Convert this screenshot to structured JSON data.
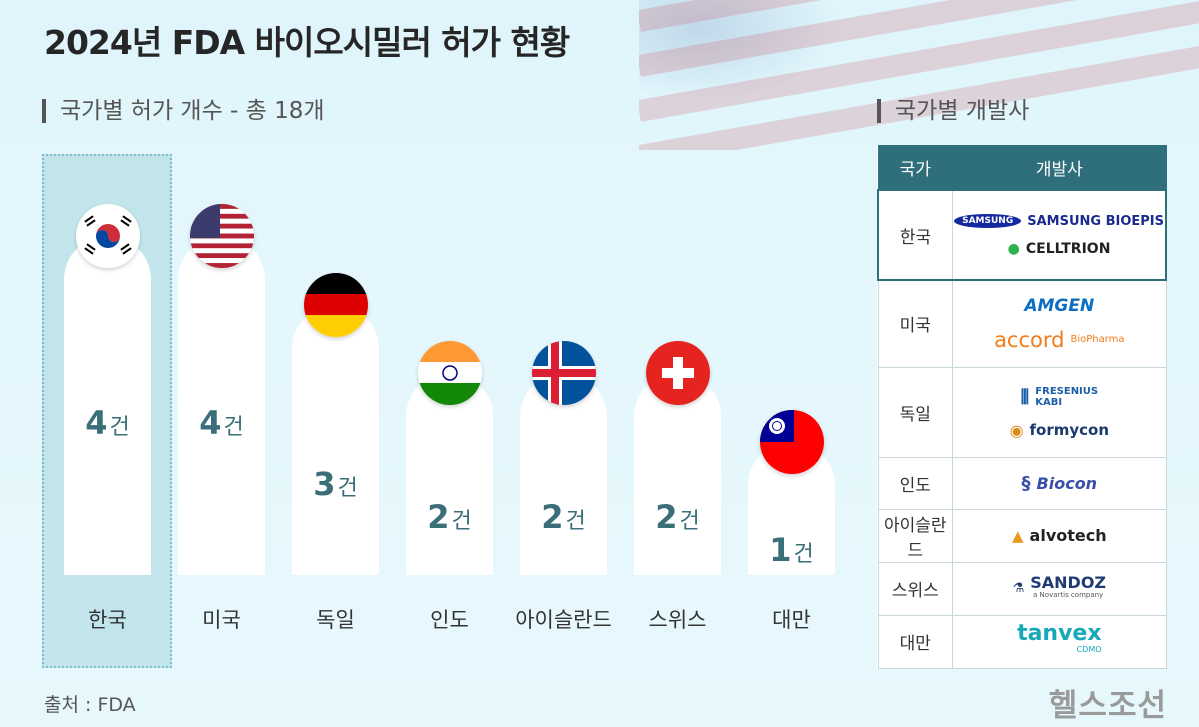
{
  "title": "2024년 FDA 바이오시밀러 허가  현황",
  "left_section_title": "국가별 허가 개수 - 총 18개",
  "right_section_title": "국가별 개발사",
  "source": "출처 : FDA",
  "brand": "헬스조선",
  "unit": "건",
  "colors": {
    "value_text": "#3a6e78",
    "table_header": "#2f6f7b",
    "highlight": "#c2e5ec"
  },
  "chart_data": {
    "type": "bar",
    "title": "국가별 허가 개수 - 총 18개",
    "categories": [
      "한국",
      "미국",
      "독일",
      "인도",
      "아이슬란드",
      "스위스",
      "대만"
    ],
    "values": [
      4,
      4,
      3,
      2,
      2,
      2,
      1
    ],
    "unit": "건",
    "highlight_category": "한국",
    "flag_icons": [
      "korea-flag-icon",
      "usa-flag-icon",
      "germany-flag-icon",
      "india-flag-icon",
      "iceland-flag-icon",
      "switzerland-flag-icon",
      "taiwan-flag-icon"
    ]
  },
  "table": {
    "headers": [
      "국가",
      "개발사"
    ],
    "rows": [
      {
        "country": "한국",
        "developers": [
          "SAMSUNG BIOEPIS",
          "CELLTRION"
        ],
        "highlight": true
      },
      {
        "country": "미국",
        "developers": [
          "AMGEN",
          "accord"
        ]
      },
      {
        "country": "독일",
        "developers": [
          "FRESENIUS KABI",
          "formycon"
        ]
      },
      {
        "country": "인도",
        "developers": [
          "Biocon"
        ]
      },
      {
        "country": "아이슬란드",
        "developers": [
          "alvotech"
        ]
      },
      {
        "country": "스위스",
        "developers": [
          "SANDOZ"
        ]
      },
      {
        "country": "대만",
        "developers": [
          "tanvex"
        ]
      }
    ],
    "logo_extras": {
      "samsung_badge": "SAMSUNG",
      "accord_sub": "BioPharma",
      "sandoz_sub": "a Novartis company",
      "tanvex_sub": "CDMO"
    }
  }
}
